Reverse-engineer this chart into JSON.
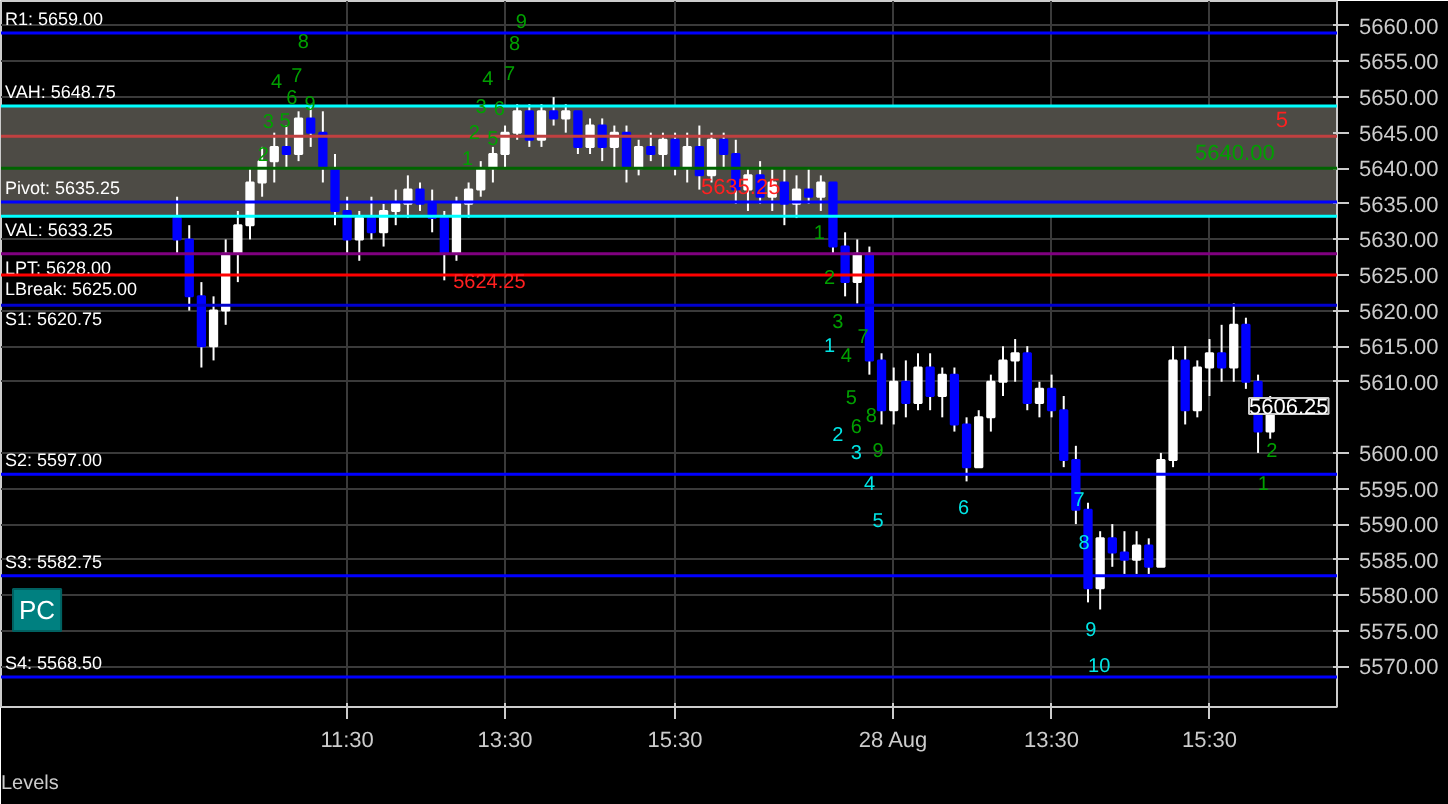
{
  "chart_data": {
    "type": "candlestick",
    "categories": [
      null,
      null,
      null,
      null,
      null,
      null,
      null,
      null,
      null,
      null,
      null,
      null,
      null,
      null,
      "11:30",
      null,
      null,
      null,
      null,
      null,
      null,
      null,
      null,
      null,
      null,
      null,
      null,
      "13:30",
      null,
      null,
      null,
      null,
      null,
      null,
      null,
      null,
      null,
      null,
      null,
      null,
      null,
      "15:30",
      null,
      null,
      null,
      null,
      null,
      null,
      null,
      null,
      null,
      null,
      null,
      null,
      null,
      null,
      null,
      null,
      null,
      "28 Aug",
      null,
      null,
      null,
      null,
      null,
      null,
      null,
      null,
      null,
      null,
      null,
      null,
      "13:30",
      null,
      null,
      null,
      null,
      null,
      null,
      null,
      null,
      null,
      null,
      null,
      null,
      "15:30",
      null,
      null,
      null,
      null,
      null
    ],
    "ohlc": [
      [
        5633,
        5636,
        5628,
        5630
      ],
      [
        5630,
        5632,
        5620,
        5622
      ],
      [
        5622,
        5624,
        5612,
        5615
      ],
      [
        5615,
        5622,
        5613,
        5620
      ],
      [
        5620,
        5630,
        5618,
        5628
      ],
      [
        5628,
        5634,
        5624,
        5632
      ],
      [
        5632,
        5640,
        5630,
        5638
      ],
      [
        5638,
        5643,
        5636,
        5641
      ],
      [
        5641,
        5645,
        5638,
        5643
      ],
      [
        5643,
        5646,
        5640,
        5642
      ],
      [
        5642,
        5648,
        5641,
        5647
      ],
      [
        5647,
        5649,
        5643,
        5645
      ],
      [
        5645,
        5648,
        5638,
        5640
      ],
      [
        5640,
        5642,
        5632,
        5634
      ],
      [
        5634,
        5636,
        5628,
        5630
      ],
      [
        5630,
        5634,
        5627,
        5633
      ],
      [
        5633,
        5636,
        5630,
        5631
      ],
      [
        5631,
        5635,
        5629,
        5634
      ],
      [
        5634,
        5637,
        5632,
        5635
      ],
      [
        5635,
        5639,
        5633,
        5637
      ],
      [
        5637,
        5638,
        5634,
        5635
      ],
      [
        5635,
        5637,
        5631,
        5633
      ],
      [
        5633,
        5634,
        5624.25,
        5628
      ],
      [
        5628,
        5636,
        5627,
        5635
      ],
      [
        5635,
        5638,
        5633,
        5637
      ],
      [
        5637,
        5641,
        5636,
        5640
      ],
      [
        5640,
        5643,
        5638,
        5642
      ],
      [
        5642,
        5646,
        5640,
        5645
      ],
      [
        5645,
        5649,
        5644,
        5648
      ],
      [
        5648,
        5649,
        5643,
        5644
      ],
      [
        5644,
        5649,
        5643,
        5648
      ],
      [
        5648,
        5650,
        5646,
        5647
      ],
      [
        5647,
        5649,
        5645,
        5648
      ],
      [
        5648,
        5648,
        5642,
        5643
      ],
      [
        5643,
        5647,
        5642,
        5646
      ],
      [
        5646,
        5647,
        5641,
        5643
      ],
      [
        5643,
        5646,
        5640,
        5645
      ],
      [
        5645,
        5646,
        5638,
        5640
      ],
      [
        5640,
        5644,
        5639,
        5643
      ],
      [
        5643,
        5645,
        5641,
        5642
      ],
      [
        5642,
        5645,
        5640,
        5644
      ],
      [
        5644,
        5645,
        5639,
        5640
      ],
      [
        5640,
        5645,
        5638,
        5643
      ],
      [
        5643,
        5646,
        5637,
        5639
      ],
      [
        5639,
        5645,
        5638,
        5644
      ],
      [
        5644,
        5645,
        5640,
        5642
      ],
      [
        5642,
        5644,
        5635,
        5637
      ],
      [
        5637,
        5640,
        5634,
        5639
      ],
      [
        5639,
        5641,
        5635,
        5636
      ],
      [
        5636,
        5640,
        5634,
        5638
      ],
      [
        5638,
        5640,
        5632,
        5635
      ],
      [
        5635,
        5639,
        5633,
        5637
      ],
      [
        5637,
        5640,
        5635,
        5636
      ],
      [
        5636,
        5639,
        5634,
        5638
      ],
      [
        5638,
        5638,
        5628,
        5629
      ],
      [
        5629,
        5631,
        5622,
        5624
      ],
      [
        5624,
        5630,
        5621,
        5628
      ],
      [
        5628,
        5629,
        5611,
        5613
      ],
      [
        5613,
        5614,
        5604,
        5606
      ],
      [
        5606,
        5612,
        5604,
        5610
      ],
      [
        5610,
        5613,
        5605,
        5607
      ],
      [
        5607,
        5614,
        5606,
        5612
      ],
      [
        5612,
        5614,
        5606,
        5608
      ],
      [
        5608,
        5612,
        5605,
        5611
      ],
      [
        5611,
        5612,
        5603,
        5604
      ],
      [
        5604,
        5605,
        5596,
        5598
      ],
      [
        5598,
        5606,
        5598,
        5605
      ],
      [
        5605,
        5611,
        5603,
        5610
      ],
      [
        5610,
        5615,
        5608,
        5613
      ],
      [
        5613,
        5616,
        5610,
        5614
      ],
      [
        5614,
        5615,
        5606,
        5607
      ],
      [
        5607,
        5610,
        5605,
        5609
      ],
      [
        5609,
        5611,
        5605,
        5606
      ],
      [
        5606,
        5608,
        5598,
        5599
      ],
      [
        5599,
        5601,
        5590,
        5592
      ],
      [
        5592,
        5593,
        5579,
        5581
      ],
      [
        5581,
        5589,
        5578,
        5588
      ],
      [
        5588,
        5590,
        5584,
        5586
      ],
      [
        5586,
        5589,
        5583,
        5585
      ],
      [
        5585,
        5589,
        5583,
        5587
      ],
      [
        5587,
        5588,
        5583,
        5584
      ],
      [
        5584,
        5600,
        5584,
        5599
      ],
      [
        5599,
        5615,
        5598,
        5613
      ],
      [
        5613,
        5615,
        5604,
        5606
      ],
      [
        5606,
        5613,
        5605,
        5612
      ],
      [
        5612,
        5616,
        5608,
        5614
      ],
      [
        5614,
        5618,
        5610,
        5612
      ],
      [
        5612,
        5621,
        5610,
        5618
      ],
      [
        5618,
        5619,
        5609,
        5610
      ],
      [
        5610,
        5611,
        5600,
        5603
      ],
      [
        5603,
        5608,
        5602,
        5606.25
      ]
    ],
    "colors": [
      "#0000ff",
      "#0000ff",
      "#0000ff",
      "#ffffff",
      "#ffffff",
      "#ffffff",
      "#ffffff",
      "#ffffff",
      "#ffffff",
      "#0000ff",
      "#ffffff",
      "#0000ff",
      "#0000ff",
      "#0000ff",
      "#0000ff",
      "#ffffff",
      "#0000ff",
      "#ffffff",
      "#ffffff",
      "#ffffff",
      "#0000ff",
      "#0000ff",
      "#0000ff",
      "#ffffff",
      "#ffffff",
      "#ffffff",
      "#ffffff",
      "#ffffff",
      "#ffffff",
      "#0000ff",
      "#ffffff",
      "#0000ff",
      "#ffffff",
      "#0000ff",
      "#ffffff",
      "#0000ff",
      "#ffffff",
      "#0000ff",
      "#ffffff",
      "#0000ff",
      "#ffffff",
      "#0000ff",
      "#ffffff",
      "#0000ff",
      "#ffffff",
      "#0000ff",
      "#0000ff",
      "#ffffff",
      "#0000ff",
      "#ffffff",
      "#0000ff",
      "#ffffff",
      "#0000ff",
      "#ffffff",
      "#0000ff",
      "#0000ff",
      "#ffffff",
      "#0000ff",
      "#0000ff",
      "#ffffff",
      "#0000ff",
      "#ffffff",
      "#0000ff",
      "#ffffff",
      "#0000ff",
      "#0000ff",
      "#ffffff",
      "#ffffff",
      "#ffffff",
      "#ffffff",
      "#0000ff",
      "#ffffff",
      "#0000ff",
      "#0000ff",
      "#0000ff",
      "#0000ff",
      "#ffffff",
      "#0000ff",
      "#0000ff",
      "#ffffff",
      "#0000ff",
      "#ffffff",
      "#ffffff",
      "#0000ff",
      "#ffffff",
      "#ffffff",
      "#0000ff",
      "#ffffff",
      "#0000ff",
      "#0000ff",
      "#ffffff"
    ],
    "ylim": [
      5564.3,
      5663.5
    ],
    "yticks": [
      {
        "value": 5570,
        "label": "5570.00"
      },
      {
        "value": 5575,
        "label": "5575.00"
      },
      {
        "value": 5580,
        "label": "5580.00"
      },
      {
        "value": 5585,
        "label": "5585.00"
      },
      {
        "value": 5590,
        "label": "5590.00"
      },
      {
        "value": 5595,
        "label": "5595.00"
      },
      {
        "value": 5600,
        "label": "5600.00"
      },
      {
        "value": 5610,
        "label": "5610.00"
      },
      {
        "value": 5615,
        "label": "5615.00"
      },
      {
        "value": 5620,
        "label": "5620.00"
      },
      {
        "value": 5625,
        "label": "5625.00"
      },
      {
        "value": 5630,
        "label": "5630.00"
      },
      {
        "value": 5635,
        "label": "5635.00"
      },
      {
        "value": 5640,
        "label": "5640.00"
      },
      {
        "value": 5645,
        "label": "5645.00"
      },
      {
        "value": 5650,
        "label": "5650.00"
      },
      {
        "value": 5655,
        "label": "5655.00"
      },
      {
        "value": 5660,
        "label": "5660.00"
      }
    ],
    "grid": true,
    "bands": [
      {
        "axis": "y",
        "from": 5633.25,
        "to": 5648.75,
        "color": "#4d4b45"
      }
    ],
    "ref_lines": [
      {
        "axis": "y",
        "value": 5659.0,
        "label": "R1: 5659.00",
        "color": "#0000ff"
      },
      {
        "axis": "y",
        "value": 5648.75,
        "label": "VAH: 5648.75",
        "color": "#00ffff"
      },
      {
        "axis": "y",
        "value": 5635.25,
        "label": "Pivot: 5635.25",
        "color": "#0000ff"
      },
      {
        "axis": "y",
        "value": 5633.25,
        "label": "VAL: 5633.25",
        "color": "#00ffff"
      },
      {
        "axis": "y",
        "value": 5628.0,
        "label": "LPT: 5628.00",
        "color": "#800080"
      },
      {
        "axis": "y",
        "value": 5625.0,
        "label": "LBreak: 5625.00",
        "color": "#ff0000"
      },
      {
        "axis": "y",
        "value": 5620.75,
        "label": "S1: 5620.75",
        "color": "#0000cc"
      },
      {
        "axis": "y",
        "value": 5597.0,
        "label": "S2: 5597.00",
        "color": "#0000ff"
      },
      {
        "axis": "y",
        "value": 5582.75,
        "label": "S3: 5582.75",
        "color": "#0000ff"
      },
      {
        "axis": "y",
        "value": 5568.5,
        "label": "S4: 5568.50",
        "color": "#0000ff"
      },
      {
        "axis": "y",
        "value": 5644.5,
        "color": "#c04040"
      },
      {
        "axis": "y",
        "value": 5640.0,
        "color": "#006400"
      }
    ],
    "annotations": [
      "2",
      "3",
      "4",
      "5",
      "6",
      "7",
      "8",
      "9",
      "1",
      "2",
      "3",
      "4",
      "5",
      "6",
      "7",
      "8",
      "9",
      "1",
      "2",
      "3",
      "4",
      "5",
      "6",
      "7",
      "8",
      "9",
      "2",
      "1",
      "1",
      "2",
      "3",
      "4",
      "5",
      "6",
      "7",
      "8",
      "9",
      "10",
      "5624.25",
      {
        "text": "5635.25",
        "y": 5635.25
      },
      {
        "text": "5640.00",
        "y": 5640.0
      },
      {
        "text": "5",
        "y": 5644.5
      },
      "5606.25",
      "PC",
      "Levels"
    ]
  }
}
